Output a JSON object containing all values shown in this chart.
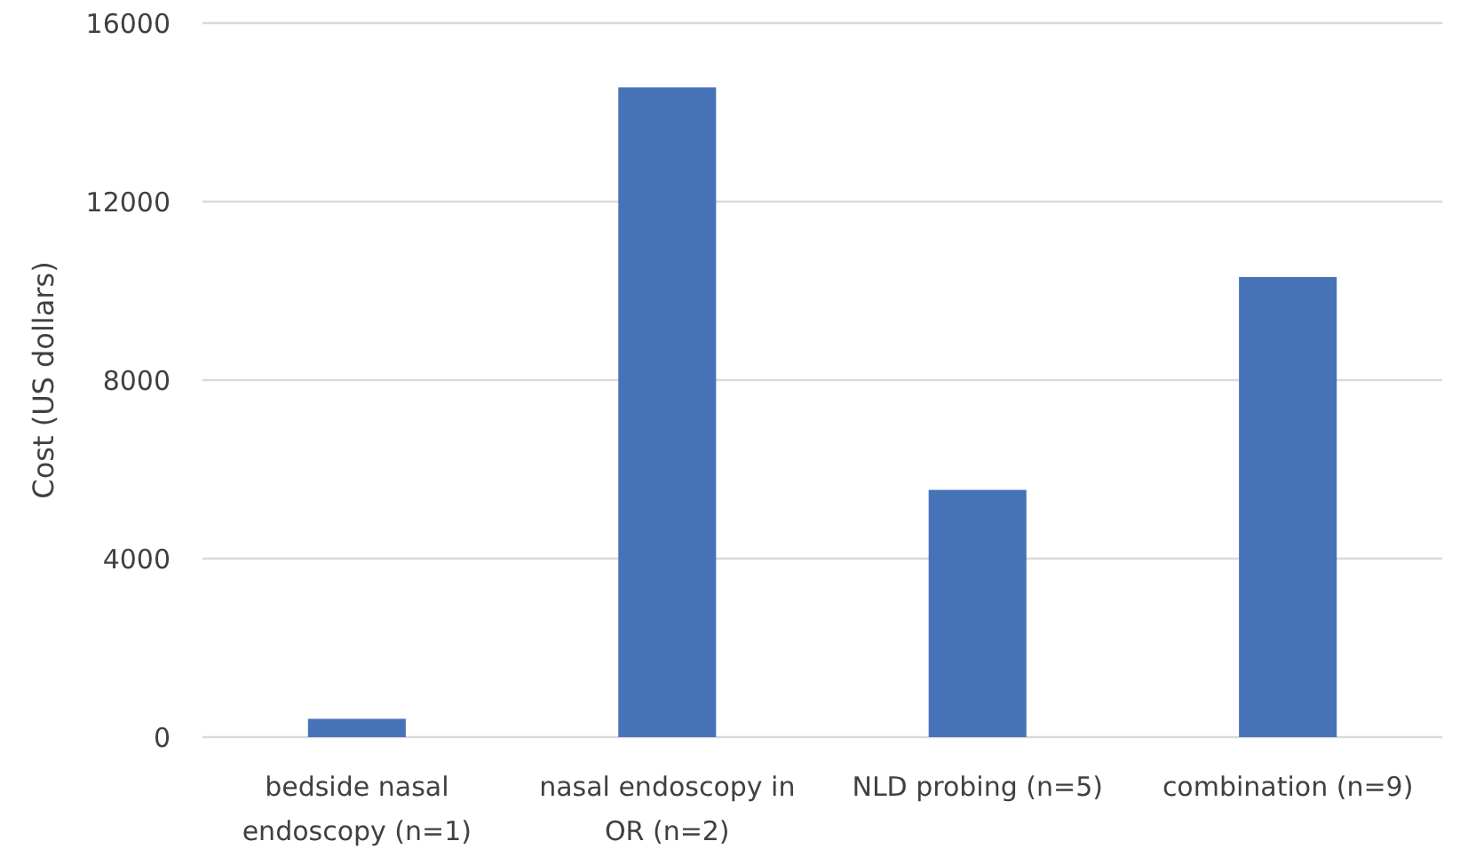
{
  "chart_data": {
    "type": "bar",
    "ylabel": "Cost (US dollars)",
    "categories": [
      "bedside nasal endoscopy (n=1)",
      "nasal endoscopy in OR (n=2)",
      "NLD probing (n=5)",
      "combination (n=9)"
    ],
    "values": [
      410,
      14560,
      5540,
      10310
    ],
    "color": "#4672b8",
    "ylim": [
      0,
      16000
    ],
    "yticks": [
      0,
      4000,
      8000,
      12000,
      16000
    ],
    "grid": "y"
  }
}
